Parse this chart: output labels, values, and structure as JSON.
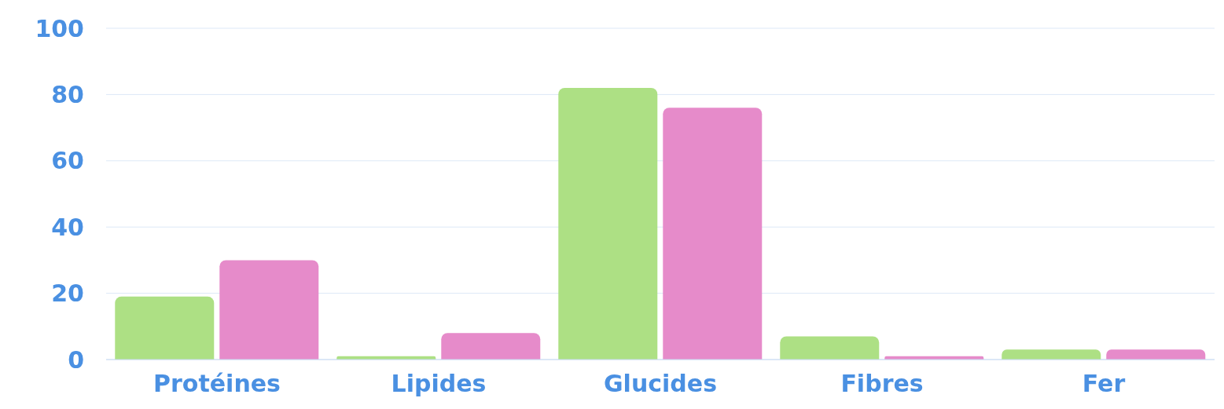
{
  "chart_data": {
    "type": "bar",
    "categories": [
      "Protéines",
      "Lipides",
      "Glucides",
      "Fibres",
      "Fer"
    ],
    "series": [
      {
        "color": "#ade084",
        "values": [
          19,
          1,
          82,
          7,
          3
        ]
      },
      {
        "color": "#e68bca",
        "values": [
          30,
          8,
          76,
          1,
          3
        ]
      }
    ],
    "ylim": [
      0,
      100
    ],
    "yticks": [
      0,
      20,
      40,
      60,
      80,
      100
    ],
    "grid": "y",
    "legend": false
  }
}
